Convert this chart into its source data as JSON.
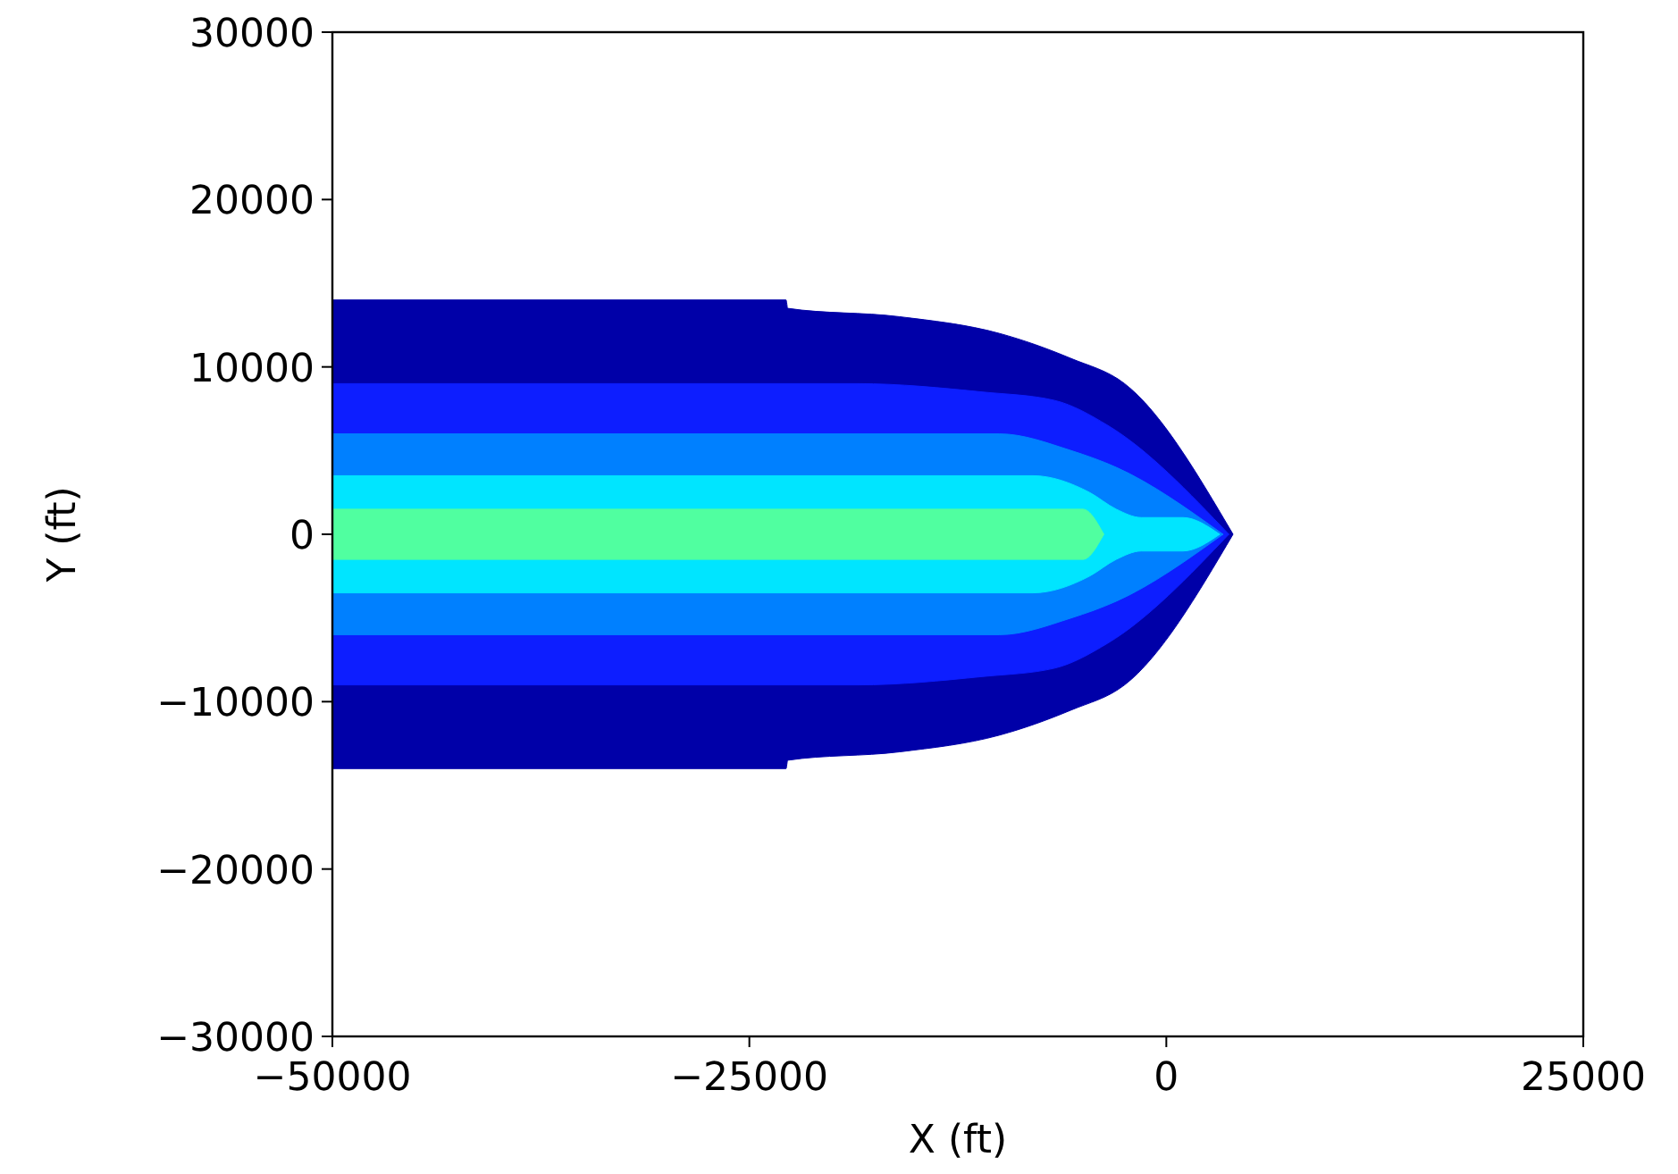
{
  "chart_data": {
    "type": "area",
    "xlabel": "X (ft)",
    "ylabel": "Y (ft)",
    "xlim": [
      -50000,
      25000
    ],
    "ylim": [
      -30000,
      30000
    ],
    "xticks": [
      {
        "value": -50000,
        "label": "−50000"
      },
      {
        "value": -25000,
        "label": "−25000"
      },
      0,
      25000
    ],
    "yticks": [
      {
        "value": -30000,
        "label": "−30000"
      },
      {
        "value": -20000,
        "label": "−20000"
      },
      {
        "value": -10000,
        "label": "−10000"
      },
      0,
      10000,
      20000,
      30000
    ],
    "grid": false,
    "series": [
      {
        "color": "#0000a8",
        "x": [
          -50000,
          -22800,
          -22700,
          -16000,
          -10000,
          -5700,
          -2500,
          4000
        ],
        "values": [
          14000,
          14000,
          13500,
          13000,
          12000,
          10500,
          9000,
          0
        ]
      },
      {
        "color": "#0000a8",
        "x": [
          -50000,
          -22800,
          -22700,
          -16000,
          -10000,
          -5700,
          -2500,
          4000
        ],
        "values": [
          -14000,
          -14000,
          -13500,
          -13000,
          -12000,
          -10500,
          -9000,
          0
        ]
      },
      {
        "color": "#0d1eff",
        "x": [
          -50000,
          -18500,
          -11000,
          -6700,
          -3500,
          3750
        ],
        "values": [
          9000,
          9000,
          8500,
          8000,
          6500,
          0
        ]
      },
      {
        "color": "#0d1eff",
        "x": [
          -50000,
          -18500,
          -11000,
          -6700,
          -3500,
          3750
        ],
        "values": [
          -9000,
          -9000,
          -8500,
          -8000,
          -6500,
          0
        ]
      },
      {
        "color": "#0080ff",
        "x": [
          -50000,
          -10000,
          -5700,
          -3000,
          3400
        ],
        "values": [
          6000,
          6000,
          5000,
          4000,
          0
        ]
      },
      {
        "color": "#0080ff",
        "x": [
          -50000,
          -10000,
          -5700,
          -3000,
          3400
        ],
        "values": [
          -6000,
          -6000,
          -5000,
          -4000,
          0
        ]
      },
      {
        "color": "#00e5ff",
        "x": [
          -50000,
          -8000,
          -4600,
          -3000,
          -1500,
          1000,
          3200
        ],
        "values": [
          3500,
          3500,
          2500,
          1500,
          1000,
          1000,
          0
        ]
      },
      {
        "color": "#00e5ff",
        "x": [
          -50000,
          -8000,
          -4600,
          -3000,
          -1500,
          1000,
          3200
        ],
        "values": [
          -3500,
          -3500,
          -2500,
          -1500,
          -1000,
          -1000,
          0
        ]
      },
      {
        "color": "#50ffa0",
        "x": [
          -50000,
          -8000,
          -5000,
          -3750
        ],
        "values": [
          1500,
          1500,
          1500,
          0
        ]
      },
      {
        "color": "#50ffa0",
        "x": [
          -50000,
          -8000,
          -5000,
          -3750
        ],
        "values": [
          -1500,
          -1500,
          -1500,
          0
        ]
      }
    ]
  }
}
